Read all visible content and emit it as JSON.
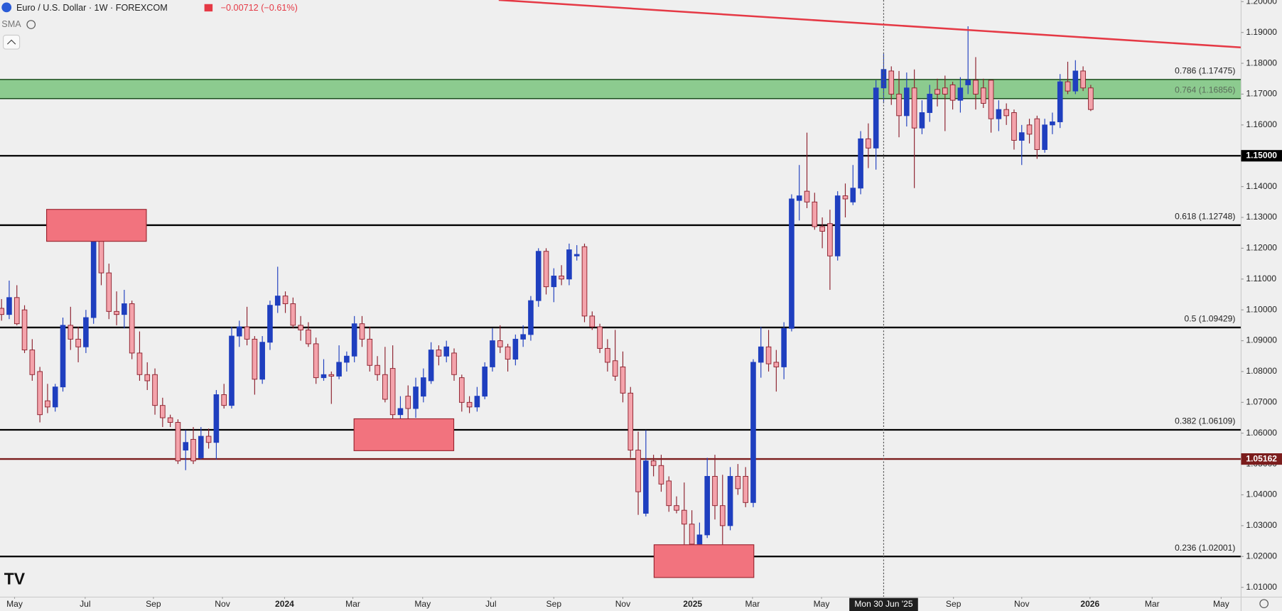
{
  "chart_data": {
    "type": "candlestick",
    "title": "Euro / U.S. Dollar · 1W · FOREXCOM",
    "change": "−0.00712 (−0.61%)",
    "indicator": "SMA",
    "up_color": "#1f3fbf",
    "down_color": "#f4a3ab",
    "down_border": "#8c1f2c",
    "ohlc": [
      [
        1.1005,
        1.1035,
        1.0965,
        1.0985
      ],
      [
        1.0985,
        1.1095,
        1.097,
        1.104
      ],
      [
        1.104,
        1.108,
        1.095,
        1.0955
      ],
      [
        1.1,
        1.1015,
        1.086,
        1.087
      ],
      [
        1.087,
        1.0905,
        1.077,
        1.079
      ],
      [
        1.08,
        1.0815,
        1.0635,
        1.066
      ],
      [
        1.0705,
        1.076,
        1.0665,
        1.0685
      ],
      [
        1.0685,
        1.076,
        1.067,
        1.075
      ],
      [
        1.075,
        1.0975,
        1.0735,
        1.095
      ],
      [
        1.095,
        1.101,
        1.087,
        1.0905
      ],
      [
        1.0905,
        1.0945,
        1.083,
        1.088
      ],
      [
        1.088,
        1.1,
        1.086,
        1.0975
      ],
      [
        1.0975,
        1.1275,
        1.0955,
        1.1235
      ],
      [
        1.1235,
        1.1245,
        1.108,
        1.112
      ],
      [
        1.112,
        1.115,
        1.097,
        1.0995
      ],
      [
        1.0995,
        1.106,
        1.095,
        1.0985
      ],
      [
        1.0985,
        1.1065,
        1.094,
        1.102
      ],
      [
        1.102,
        1.103,
        1.084,
        1.086
      ],
      [
        1.086,
        1.093,
        1.077,
        1.079
      ],
      [
        1.079,
        1.083,
        1.074,
        1.077
      ],
      [
        1.079,
        1.081,
        1.066,
        1.069
      ],
      [
        1.069,
        1.0715,
        1.062,
        1.065
      ],
      [
        1.065,
        1.066,
        1.062,
        1.0635
      ],
      [
        1.0635,
        1.0645,
        1.05,
        1.051
      ],
      [
        1.0545,
        1.061,
        1.048,
        1.057
      ],
      [
        1.058,
        1.062,
        1.05,
        1.051
      ],
      [
        1.052,
        1.062,
        1.0515,
        1.059
      ],
      [
        1.059,
        1.0615,
        1.055,
        1.057
      ],
      [
        1.057,
        1.074,
        1.0515,
        1.0725
      ],
      [
        1.0725,
        1.076,
        1.068,
        1.069
      ],
      [
        1.069,
        1.0945,
        1.068,
        1.0915
      ],
      [
        1.0915,
        1.0965,
        1.088,
        1.0945
      ],
      [
        1.0945,
        1.101,
        1.0885,
        1.0905
      ],
      [
        1.0905,
        1.0915,
        1.0725,
        1.0775
      ],
      [
        1.0775,
        1.0915,
        1.076,
        1.0895
      ],
      [
        1.0895,
        1.103,
        1.087,
        1.1015
      ],
      [
        1.1015,
        1.114,
        1.099,
        1.1045
      ],
      [
        1.1045,
        1.106,
        1.099,
        1.102
      ],
      [
        1.102,
        1.104,
        1.094,
        1.095
      ],
      [
        1.095,
        1.098,
        1.09,
        1.0935
      ],
      [
        1.0935,
        1.096,
        1.088,
        1.089
      ],
      [
        1.089,
        1.091,
        1.076,
        1.078
      ],
      [
        1.078,
        1.084,
        1.077,
        1.079
      ],
      [
        1.079,
        1.08,
        1.0695,
        1.0785
      ],
      [
        1.0785,
        1.0885,
        1.0775,
        1.083
      ],
      [
        1.083,
        1.0865,
        1.08,
        1.085
      ],
      [
        1.085,
        1.098,
        1.083,
        1.0955
      ],
      [
        1.0955,
        1.098,
        1.088,
        1.0905
      ],
      [
        1.0905,
        1.0945,
        1.08,
        1.082
      ],
      [
        1.082,
        1.085,
        1.077,
        1.079
      ],
      [
        1.079,
        1.088,
        1.07,
        1.071
      ],
      [
        1.081,
        1.0885,
        1.06,
        1.066
      ],
      [
        1.066,
        1.072,
        1.063,
        1.068
      ],
      [
        1.072,
        1.0755,
        1.064,
        1.068
      ],
      [
        1.068,
        1.078,
        1.065,
        1.075
      ],
      [
        1.072,
        1.081,
        1.07,
        1.078
      ],
      [
        1.077,
        1.0895,
        1.076,
        1.087
      ],
      [
        1.087,
        1.0885,
        1.082,
        1.085
      ],
      [
        1.085,
        1.09,
        1.083,
        1.088
      ],
      [
        1.086,
        1.0875,
        1.077,
        1.079
      ],
      [
        1.078,
        1.079,
        1.067,
        1.07
      ],
      [
        1.07,
        1.072,
        1.0665,
        1.0685
      ],
      [
        1.0685,
        1.075,
        1.067,
        1.072
      ],
      [
        1.072,
        1.083,
        1.071,
        1.0815
      ],
      [
        1.0815,
        1.094,
        1.08,
        1.09
      ],
      [
        1.09,
        1.095,
        1.086,
        1.088
      ],
      [
        1.088,
        1.089,
        1.08,
        1.084
      ],
      [
        1.084,
        1.092,
        1.082,
        1.0905
      ],
      [
        1.0905,
        1.095,
        1.088,
        1.092
      ],
      [
        1.092,
        1.1045,
        1.09,
        1.103
      ],
      [
        1.103,
        1.12,
        1.101,
        1.119
      ],
      [
        1.119,
        1.12,
        1.105,
        1.1075
      ],
      [
        1.1075,
        1.1135,
        1.1025,
        1.111
      ],
      [
        1.111,
        1.1145,
        1.108,
        1.11
      ],
      [
        1.11,
        1.1215,
        1.108,
        1.1195
      ],
      [
        1.1175,
        1.121,
        1.116,
        1.118
      ],
      [
        1.1205,
        1.1215,
        1.096,
        1.098
      ],
      [
        1.098,
        1.0995,
        1.0935,
        1.0945
      ],
      [
        1.0945,
        1.0955,
        1.086,
        1.0875
      ],
      [
        1.0875,
        1.0905,
        1.08,
        1.083
      ],
      [
        1.0835,
        1.0935,
        1.077,
        1.0785
      ],
      [
        1.0815,
        1.0865,
        1.07,
        1.073
      ],
      [
        1.073,
        1.075,
        1.052,
        1.0545
      ],
      [
        1.0545,
        1.0605,
        1.0335,
        1.041
      ],
      [
        1.034,
        1.061,
        1.033,
        1.051
      ],
      [
        1.051,
        1.053,
        1.046,
        1.0495
      ],
      [
        1.0495,
        1.053,
        1.041,
        1.0435
      ],
      [
        1.0445,
        1.046,
        1.0345,
        1.0365
      ],
      [
        1.0365,
        1.0395,
        1.034,
        1.035
      ],
      [
        1.035,
        1.044,
        1.0225,
        1.0305
      ],
      [
        1.0305,
        1.035,
        1.018,
        1.024
      ],
      [
        1.024,
        1.031,
        1.018,
        1.027
      ],
      [
        1.027,
        1.052,
        1.026,
        1.046
      ],
      [
        1.046,
        1.053,
        1.032,
        1.0365
      ],
      [
        1.0365,
        1.0465,
        1.021,
        1.03
      ],
      [
        1.03,
        1.049,
        1.0285,
        1.046
      ],
      [
        1.046,
        1.05,
        1.04,
        1.042
      ],
      [
        1.046,
        1.049,
        1.036,
        1.0375
      ],
      [
        1.0375,
        1.084,
        1.036,
        1.083
      ],
      [
        1.083,
        1.0945,
        1.078,
        1.088
      ],
      [
        1.088,
        1.0935,
        1.08,
        1.0825
      ],
      [
        1.083,
        1.087,
        1.0735,
        1.0815
      ],
      [
        1.0815,
        1.096,
        1.0775,
        1.094
      ],
      [
        1.094,
        1.1375,
        1.093,
        1.136
      ],
      [
        1.1355,
        1.147,
        1.129,
        1.137
      ],
      [
        1.1385,
        1.1575,
        1.133,
        1.135
      ],
      [
        1.135,
        1.138,
        1.126,
        1.127
      ],
      [
        1.127,
        1.13,
        1.12,
        1.1255
      ],
      [
        1.128,
        1.1325,
        1.1065,
        1.1175
      ],
      [
        1.1175,
        1.1385,
        1.116,
        1.137
      ],
      [
        1.137,
        1.141,
        1.13,
        1.136
      ],
      [
        1.135,
        1.147,
        1.134,
        1.1395
      ],
      [
        1.1395,
        1.158,
        1.1375,
        1.1555
      ],
      [
        1.1555,
        1.1605,
        1.146,
        1.1525
      ],
      [
        1.1525,
        1.1745,
        1.1455,
        1.172
      ],
      [
        1.172,
        1.183,
        1.167,
        1.178
      ],
      [
        1.1775,
        1.179,
        1.1665,
        1.17
      ],
      [
        1.17,
        1.1775,
        1.156,
        1.163
      ],
      [
        1.163,
        1.177,
        1.1595,
        1.172
      ],
      [
        1.172,
        1.178,
        1.1395,
        1.159
      ],
      [
        1.159,
        1.168,
        1.157,
        1.164
      ],
      [
        1.164,
        1.173,
        1.161,
        1.17
      ],
      [
        1.1715,
        1.175,
        1.166,
        1.17
      ],
      [
        1.172,
        1.176,
        1.158,
        1.17
      ],
      [
        1.173,
        1.174,
        1.165,
        1.168
      ],
      [
        1.168,
        1.1755,
        1.164,
        1.172
      ],
      [
        1.173,
        1.192,
        1.17,
        1.1745
      ],
      [
        1.1745,
        1.182,
        1.165,
        1.17
      ],
      [
        1.172,
        1.175,
        1.1655,
        1.167
      ],
      [
        1.1745,
        1.1745,
        1.1575,
        1.162
      ],
      [
        1.162,
        1.168,
        1.158,
        1.165
      ],
      [
        1.165,
        1.167,
        1.16,
        1.163
      ],
      [
        1.164,
        1.165,
        1.152,
        1.155
      ],
      [
        1.155,
        1.16,
        1.147,
        1.1575
      ],
      [
        1.16,
        1.162,
        1.154,
        1.157
      ],
      [
        1.162,
        1.163,
        1.149,
        1.152
      ],
      [
        1.152,
        1.162,
        1.151,
        1.16
      ],
      [
        1.16,
        1.164,
        1.157,
        1.161
      ],
      [
        1.161,
        1.1765,
        1.159,
        1.174
      ],
      [
        1.174,
        1.1805,
        1.17,
        1.171
      ],
      [
        1.171,
        1.181,
        1.17,
        1.1775
      ],
      [
        1.1775,
        1.179,
        1.171,
        1.172
      ],
      [
        1.172,
        1.173,
        1.1645,
        1.165
      ]
    ],
    "ylim": [
      1.00682,
      1.20053
    ],
    "yticks": [
      {
        "value": 1.2,
        "label": "1.20000"
      },
      {
        "value": 1.19,
        "label": "1.19000"
      },
      {
        "value": 1.18,
        "label": "1.18000"
      },
      {
        "value": 1.17,
        "label": "1.17000"
      },
      {
        "value": 1.16,
        "label": "1.16000"
      },
      {
        "value": 1.15,
        "label": "1.15000"
      },
      {
        "value": 1.14,
        "label": "1.14000"
      },
      {
        "value": 1.13,
        "label": "1.13000"
      },
      {
        "value": 1.12,
        "label": "1.12000"
      },
      {
        "value": 1.11,
        "label": "1.11000"
      },
      {
        "value": 1.1,
        "label": "1.10000"
      },
      {
        "value": 1.09,
        "label": "1.09000"
      },
      {
        "value": 1.08,
        "label": "1.08000"
      },
      {
        "value": 1.07,
        "label": "1.07000"
      },
      {
        "value": 1.06,
        "label": "1.06000"
      },
      {
        "value": 1.05,
        "label": "1.05000"
      },
      {
        "value": 1.04,
        "label": "1.04000"
      },
      {
        "value": 1.03,
        "label": "1.03000"
      },
      {
        "value": 1.02,
        "label": "1.02000"
      },
      {
        "value": 1.01,
        "label": "1.01000"
      }
    ],
    "xlim": [
      -0.2,
      161.6
    ],
    "xticks": [
      {
        "value": 1.7,
        "label": "May"
      },
      {
        "value": 10.9,
        "label": "Jul"
      },
      {
        "value": 19.8,
        "label": "Sep"
      },
      {
        "value": 28.8,
        "label": "Nov"
      },
      {
        "value": 36.9,
        "label": "2024"
      },
      {
        "value": 45.8,
        "label": "Mar"
      },
      {
        "value": 54.9,
        "label": "May"
      },
      {
        "value": 63.8,
        "label": "Jul"
      },
      {
        "value": 72,
        "label": "Sep"
      },
      {
        "value": 81,
        "label": "Nov"
      },
      {
        "value": 90.1,
        "label": "2025"
      },
      {
        "value": 97.9,
        "label": "Mar"
      },
      {
        "value": 106.9,
        "label": "May"
      },
      {
        "value": 124.1,
        "label": "Sep"
      },
      {
        "value": 133,
        "label": "Nov"
      },
      {
        "value": 141.9,
        "label": "2026"
      },
      {
        "value": 150,
        "label": "Mar"
      },
      {
        "value": 159,
        "label": "May"
      }
    ],
    "crosshair": {
      "value": 115,
      "label": "Mon 30 Jun '25"
    },
    "zone": {
      "color": "#81c784"
    },
    "fib_levels": [
      {
        "value": 1.17475,
        "label": "0.786 (1.17475)"
      },
      {
        "value": 1.16856,
        "label": "0.764 (1.16856)"
      },
      {
        "value": 1.12748,
        "label": "0.618 (1.12748)"
      },
      {
        "value": 1.09429,
        "label": "0.5 (1.09429)"
      },
      {
        "value": 1.06109,
        "label": "0.382 (1.06109)"
      },
      {
        "value": 1.02001,
        "label": "0.236 (1.02001)"
      }
    ],
    "price_lines": [
      {
        "value": 1.15,
        "label": "1.15000",
        "color": "#000000"
      },
      {
        "value": 1.05162,
        "label": "1.05162",
        "color": "#7b1c1c"
      }
    ]
  }
}
